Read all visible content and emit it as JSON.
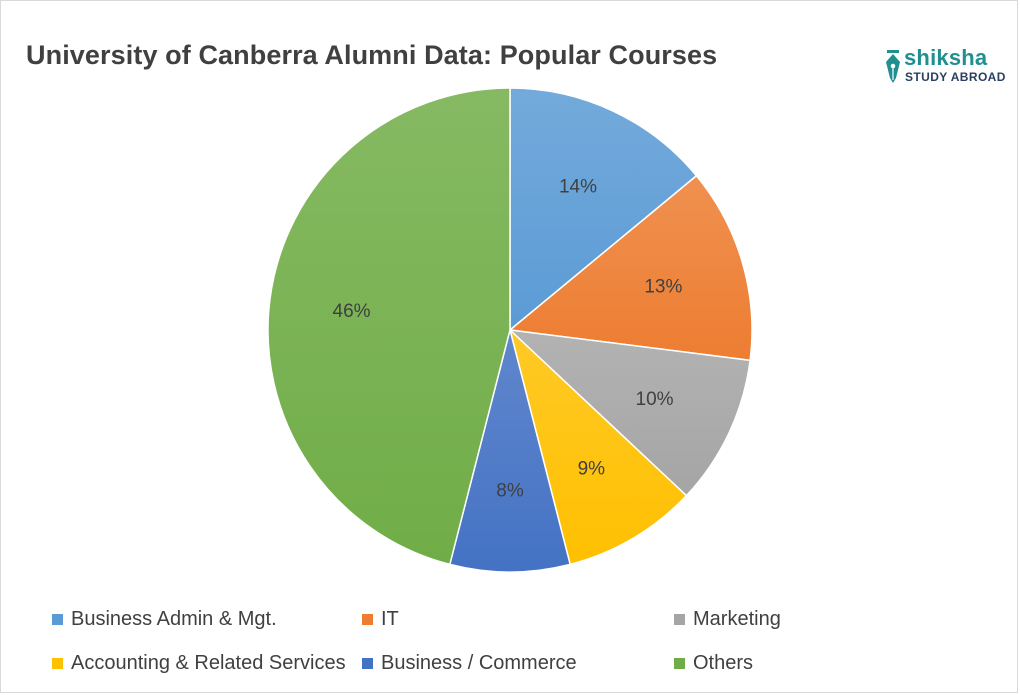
{
  "chart_data": {
    "type": "pie",
    "title": "University of Canberra Alumni Data: Popular Courses",
    "slices": [
      {
        "label": "Business Admin & Mgt.",
        "value": 14,
        "display": "14%",
        "color": "#5b9bd5"
      },
      {
        "label": "IT",
        "value": 13,
        "display": "13%",
        "color": "#ed7d31"
      },
      {
        "label": "Marketing",
        "value": 10,
        "display": "10%",
        "color": "#a5a5a5"
      },
      {
        "label": "Accounting & Related Services",
        "value": 9,
        "display": "9%",
        "color": "#ffc000"
      },
      {
        "label": "Business / Commerce",
        "value": 8,
        "display": "8%",
        "color": "#4472c4"
      },
      {
        "label": "Others",
        "value": 46,
        "display": "46%",
        "color": "#70ad47"
      }
    ],
    "legend_position": "bottom"
  },
  "logo": {
    "top_text": "shiksha",
    "bottom_text": "STUDY ABROAD",
    "icon": "pen-nib-icon",
    "color": "#1f8f8f"
  }
}
